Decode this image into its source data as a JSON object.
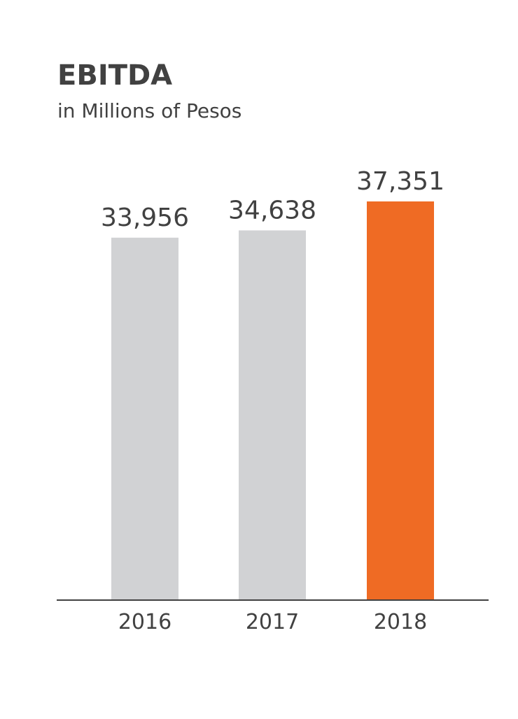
{
  "chart_data": {
    "type": "bar",
    "title": "EBITDA",
    "subtitle": "in Millions of Pesos",
    "categories": [
      "2016",
      "2017",
      "2018"
    ],
    "values": [
      33956,
      34638,
      37351
    ],
    "value_labels": [
      "33,956",
      "34,638",
      "37,351"
    ],
    "ylim": [
      0,
      37351
    ],
    "grid": false,
    "bar_colors": [
      "#d1d2d4",
      "#d1d2d4",
      "#ef6b24"
    ],
    "axis_color": "#414141",
    "text_color": "#414141"
  }
}
